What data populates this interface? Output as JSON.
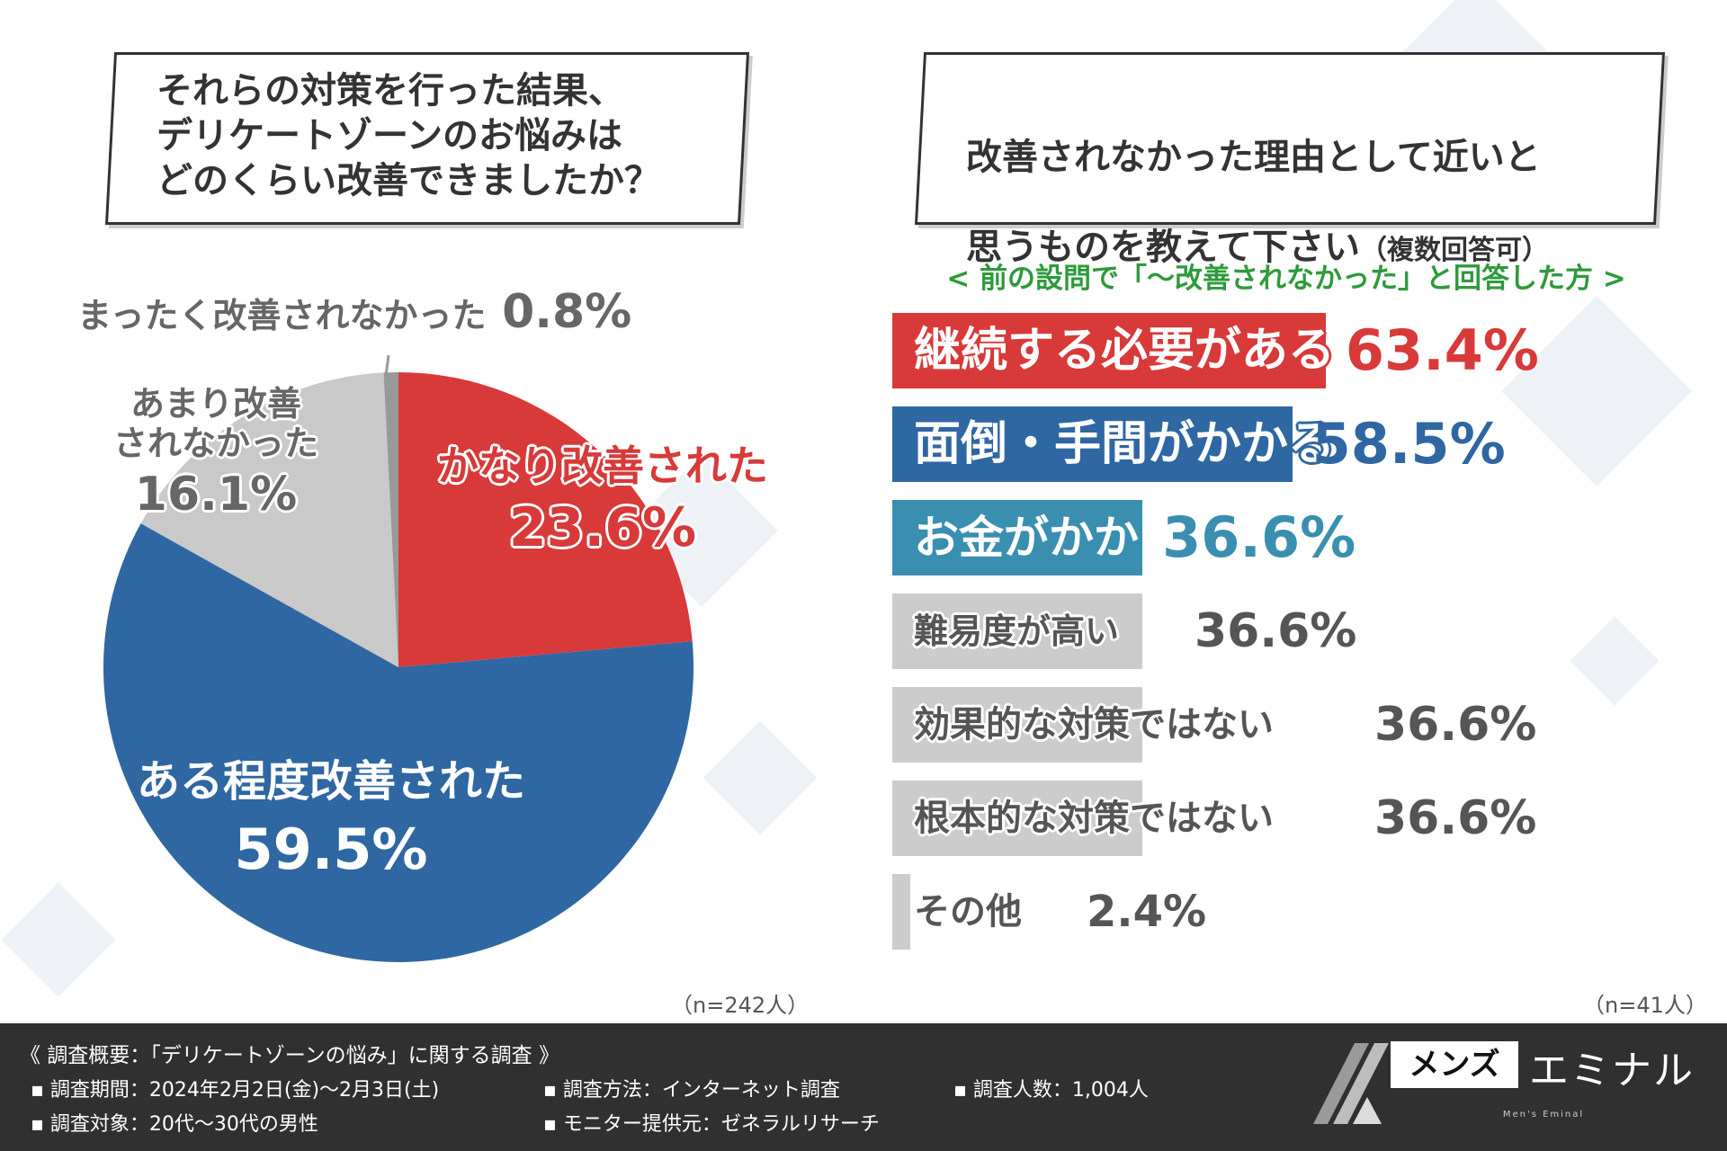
{
  "left": {
    "question": "それらの対策を行った結果、\nデリケートゾーンのお悩みは\nどのくらい改善できましたか？",
    "n_label": "（n=242人）"
  },
  "right": {
    "question_line1": "改善されなかった理由として近いと",
    "question_line2": "思うものを教えて下さい",
    "question_note": "（複数回答可）",
    "subtitle": "< 前の設問で「～改善されなかった」と回答した方 >",
    "n_label": "（n=41人）"
  },
  "chart_data": [
    {
      "type": "pie",
      "slices": [
        {
          "label": "かなり改善された",
          "value": 23.6,
          "value_label": "23.6%",
          "color": "#d83a3a"
        },
        {
          "label": "ある程度改善された",
          "value": 59.5,
          "value_label": "59.5%",
          "color": "#2f67a2"
        },
        {
          "label": "あまり改善されなかった",
          "label_line1": "あまり改善",
          "label_line2": "されなかった",
          "value": 16.1,
          "value_label": "16.1%",
          "color": "#c9c9c9"
        },
        {
          "label": "まったく改善されなかった",
          "value": 0.8,
          "value_label": "0.8%",
          "color": "#999999"
        }
      ]
    },
    {
      "type": "bar",
      "orientation": "horizontal",
      "categories": [
        "継続する必要がある",
        "面倒・手間がかかる",
        "お金がかかる",
        "難易度が高い",
        "効果的な対策ではない",
        "根本的な対策ではない",
        "その他"
      ],
      "values": [
        63.4,
        58.5,
        36.6,
        36.6,
        36.6,
        36.6,
        2.4
      ],
      "value_labels": [
        "63.4%",
        "58.5%",
        "36.6%",
        "36.6%",
        "36.6%",
        "36.6%",
        "2.4%"
      ],
      "colors": [
        "#d83a3a",
        "#2f67a2",
        "#3a8fb0",
        "#cccccc",
        "#cccccc",
        "#cccccc",
        "#cccccc"
      ],
      "xlim": [
        0,
        100
      ]
    }
  ],
  "footer": {
    "title": "《 調査概要：「デリケートゾーンの悩み」に関する調査 》",
    "items": [
      "▪ 調査期間：2024年2月2日(金)～2月3日(土)",
      "▪ 調査方法：インターネット調査",
      "▪ 調査人数：1,004人",
      "▪ 調査対象：20代～30代の男性",
      "▪ モニター提供元：ゼネラルリサーチ"
    ],
    "brand_box": "メンズ",
    "brand_name": "エミナル",
    "brand_sub": "Men's Eminal"
  }
}
